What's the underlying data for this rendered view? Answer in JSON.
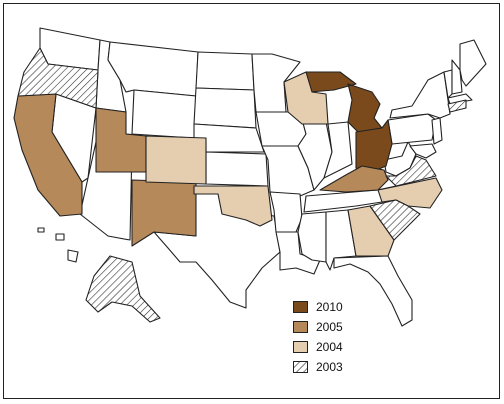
{
  "legend": {
    "items": [
      {
        "label": "2010",
        "color": "#7a4a1c"
      },
      {
        "label": "2005",
        "color": "#b5895a"
      },
      {
        "label": "2004",
        "color": "#e5cdb0"
      },
      {
        "label": "2003",
        "color": "hatch"
      }
    ]
  },
  "states": [
    {
      "name": "Michigan",
      "year": "2010"
    },
    {
      "name": "Ohio",
      "year": "2010"
    },
    {
      "name": "Utah",
      "year": "2005"
    },
    {
      "name": "Kentucky",
      "year": "2005"
    },
    {
      "name": "New Mexico",
      "year": "2005"
    },
    {
      "name": "California",
      "year": "2005"
    },
    {
      "name": "Colorado",
      "year": "2004"
    },
    {
      "name": "Wisconsin",
      "year": "2004"
    },
    {
      "name": "Oklahoma",
      "year": "2004"
    },
    {
      "name": "Georgia",
      "year": "2004"
    },
    {
      "name": "North Carolina",
      "year": "2004"
    },
    {
      "name": "Oregon",
      "year": "2003"
    },
    {
      "name": "Virginia",
      "year": "2003"
    },
    {
      "name": "South Carolina",
      "year": "2003"
    },
    {
      "name": "Alaska",
      "year": "2003"
    },
    {
      "name": "Connecticut",
      "year": "2003"
    }
  ]
}
